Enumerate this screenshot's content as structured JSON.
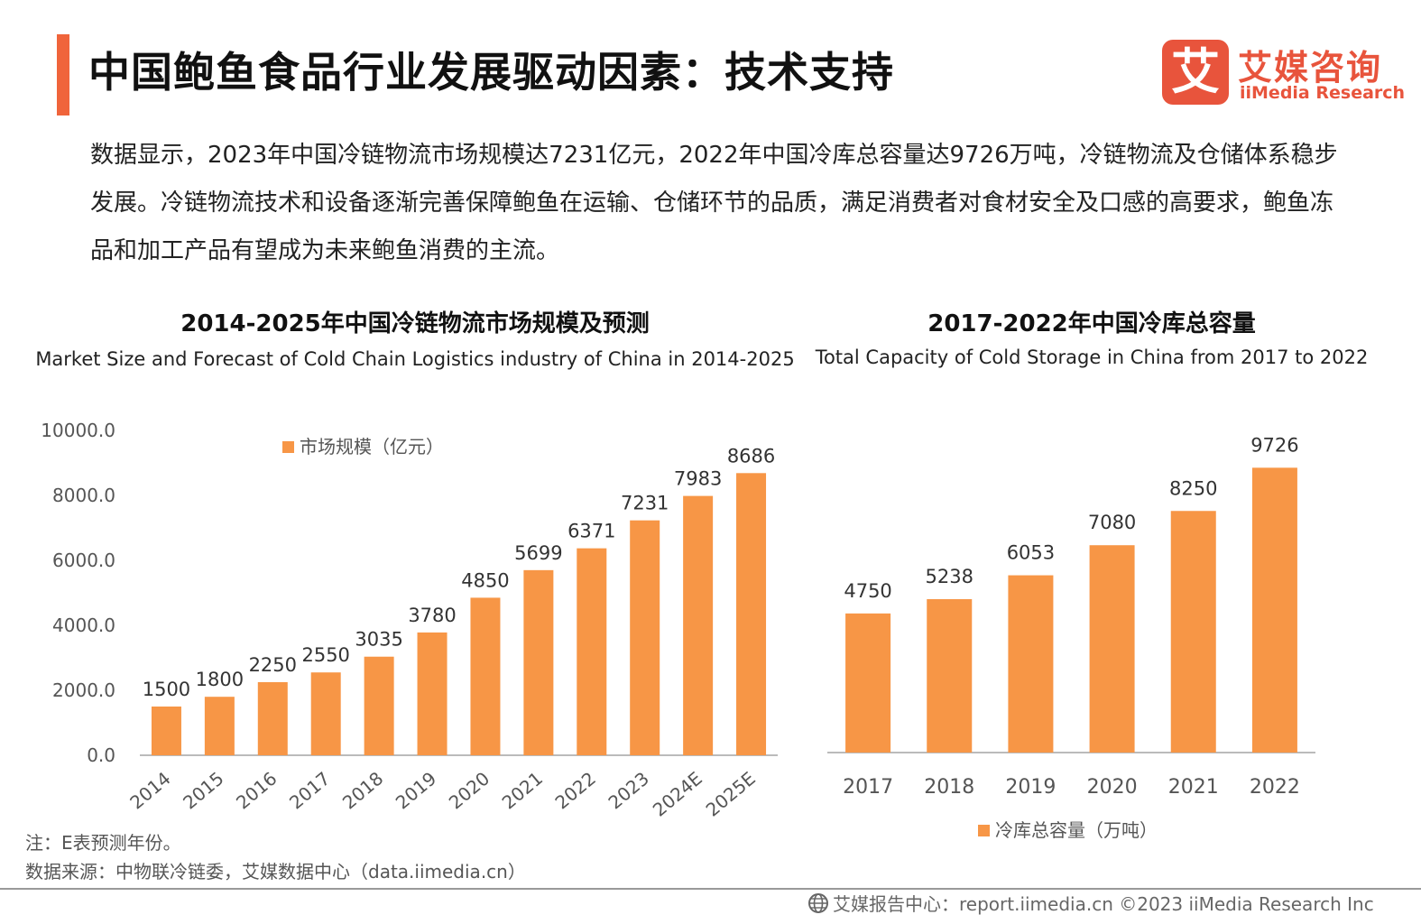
{
  "header": {
    "title": "中国鲍鱼食品行业发展驱动因素：技术支持",
    "accent_color": "#f0643b"
  },
  "logo": {
    "mark": "艾",
    "name_cn": "艾媒咨询",
    "name_en": "iiMedia Research",
    "color": "#e8543c"
  },
  "summary": "数据显示，2023年中国冷链物流市场规模达7231亿元，2022年中国冷库总容量达9726万吨，冷链物流及仓储体系稳步发展。冷链物流技术和设备逐渐完善保障鲍鱼在运输、仓储环节的品质，满足消费者对食材安全及口感的高要求，鲍鱼冻品和加工产品有望成为未来鲍鱼消费的主流。",
  "chart_data": [
    {
      "type": "bar",
      "title": "2014-2025年中国冷链物流市场规模及预测",
      "subtitle": "Market Size and Forecast of Cold Chain Logistics industry of China in 2014-2025",
      "categories": [
        "2014",
        "2015",
        "2016",
        "2017",
        "2018",
        "2019",
        "2020",
        "2021",
        "2022",
        "2023",
        "2024E",
        "2025E"
      ],
      "series": [
        {
          "name": "市场规模（亿元）",
          "values": [
            1500,
            1800,
            2250,
            2550,
            3035,
            3780,
            4850,
            5699,
            6371,
            7231,
            7983,
            8686
          ]
        }
      ],
      "data_labels": [
        "1500",
        "1800",
        "2250",
        "2550",
        "3035",
        "3780",
        "4850",
        "5699",
        "6371",
        "7231",
        "7983",
        "8686"
      ],
      "yticks": [
        "0.0",
        "2000.0",
        "4000.0",
        "6000.0",
        "8000.0",
        "10000.0"
      ],
      "ylim": [
        0,
        10000
      ],
      "legend_position": "top",
      "grid": false,
      "bar_color": "#f79646"
    },
    {
      "type": "bar",
      "title": "2017-2022年中国冷库总容量",
      "subtitle": "Total Capacity of Cold Storage in China from 2017 to 2022",
      "categories": [
        "2017",
        "2018",
        "2019",
        "2020",
        "2021",
        "2022"
      ],
      "series": [
        {
          "name": "冷库总容量（万吨）",
          "values": [
            4750,
            5238,
            6053,
            7080,
            8250,
            9726
          ]
        }
      ],
      "data_labels": [
        "4750",
        "5238",
        "6053",
        "7080",
        "8250",
        "9726"
      ],
      "legend_position": "bottom",
      "grid": false,
      "bar_color": "#f79646"
    }
  ],
  "notes": {
    "note": "注：E表预测年份。",
    "source": "数据来源：中物联冷链委，艾媒数据中心（data.iimedia.cn）"
  },
  "footer": {
    "text": "艾媒报告中心：report.iimedia.cn   ©2023  iiMedia Research  Inc",
    "icon": "globe-icon"
  }
}
